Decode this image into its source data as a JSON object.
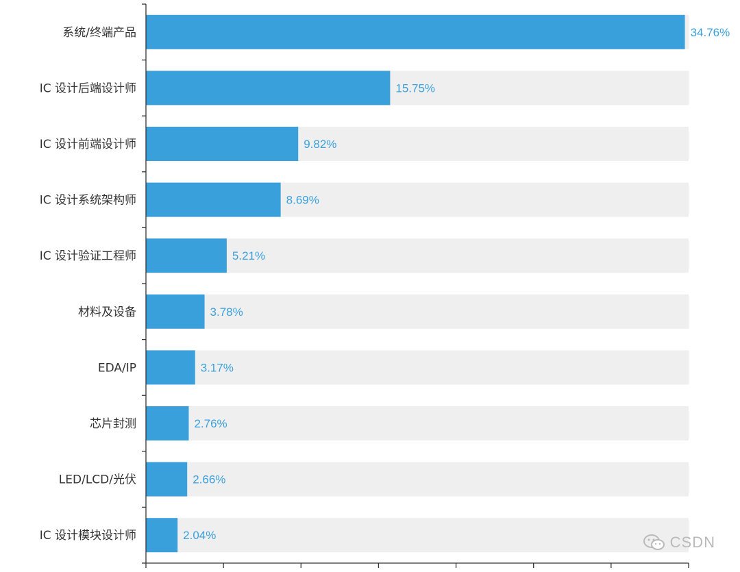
{
  "chart_data": {
    "type": "bar",
    "orientation": "horizontal",
    "categories": [
      "系统/终端产品",
      "IC 设计后端设计师",
      "IC 设计前端设计师",
      "IC 设计系统架构师",
      "IC 设计验证工程师",
      "材料及设备",
      "EDA/IP",
      "芯片封测",
      "LED/LCD/光伏",
      "IC 设计模块设计师"
    ],
    "values": [
      34.76,
      15.75,
      9.82,
      8.69,
      5.21,
      3.78,
      3.17,
      2.76,
      2.66,
      2.04
    ],
    "value_labels": [
      "34.76%",
      "15.75%",
      "9.82%",
      "8.69%",
      "5.21%",
      "3.78%",
      "3.17%",
      "2.76%",
      "2.66%",
      "2.04%"
    ],
    "xlim": [
      0,
      35
    ],
    "x_tick_count": 7,
    "background_bars": true,
    "bar_color": "#3aa0dc",
    "background_bar_color": "#efefef",
    "label_color": "#3aa0dc",
    "title": "",
    "xlabel": "",
    "ylabel": ""
  },
  "watermark": {
    "text": "CSDN",
    "icon": "wechat-icon"
  }
}
